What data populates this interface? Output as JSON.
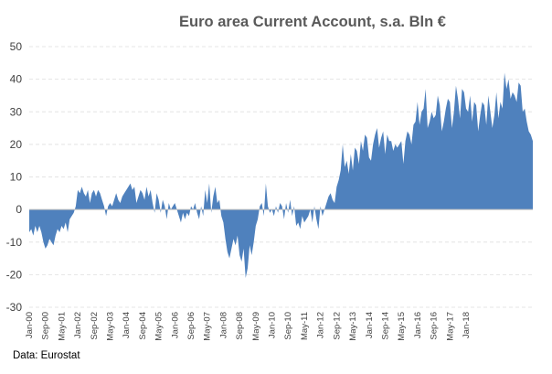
{
  "chart_data": {
    "type": "area",
    "title": "Euro area Current Account, s.a. Bln €",
    "xlabel": "",
    "ylabel": "",
    "ylim": [
      -30,
      50
    ],
    "yticks": [
      -30,
      -20,
      -10,
      0,
      10,
      20,
      30,
      40,
      50
    ],
    "grid": true,
    "legend": "none",
    "color": "#4f81bd",
    "source": "Data: Eurostat",
    "start": "Jan-00",
    "tick_labels": [
      "Jan-00",
      "Sep-00",
      "May-01",
      "Jan-02",
      "Sep-02",
      "May-03",
      "Jan-04",
      "Sep-04",
      "May-05",
      "Jan-06",
      "Sep-06",
      "May-07",
      "Jan-08",
      "Sep-08",
      "May-09",
      "Jan-10",
      "Sep-10",
      "May-11",
      "Jan-12",
      "Sep-12",
      "May-13",
      "Jan-14",
      "Sep-14",
      "May-15",
      "Jan-16",
      "Sep-16",
      "May-17",
      "Jan-18"
    ],
    "values": [
      -7,
      -6,
      -8,
      -5,
      -7,
      -5,
      -7,
      -10,
      -12,
      -11,
      -9,
      -10,
      -11,
      -8,
      -6,
      -7,
      -5,
      -6,
      -4,
      -7,
      -3,
      -2,
      -1,
      1,
      6,
      5,
      7,
      5,
      4,
      6,
      2,
      5,
      6,
      4,
      6,
      5,
      3,
      1,
      -2,
      1,
      2,
      1,
      3,
      5,
      3,
      2,
      4,
      5,
      6,
      7,
      8,
      6,
      7,
      2,
      4,
      6,
      5,
      3,
      7,
      4,
      6,
      2,
      -1,
      5,
      3,
      -1,
      3,
      1,
      -3,
      2,
      0,
      1,
      2,
      0,
      -2,
      -4,
      -1,
      -3,
      -1,
      -2,
      1,
      0,
      2,
      -1,
      -3,
      1,
      -2,
      6,
      2,
      8,
      -1,
      4,
      7,
      2,
      3,
      -2,
      -4,
      -9,
      -13,
      -15,
      -12,
      -9,
      -11,
      -8,
      -14,
      -16,
      -12,
      -21,
      -18,
      -11,
      -14,
      -10,
      -5,
      -3,
      1,
      2,
      -2,
      8,
      1,
      -1,
      0,
      -2,
      1,
      -1,
      2,
      1,
      -3,
      2,
      -1,
      3,
      -2,
      1,
      -5,
      -4,
      -6,
      -2,
      -4,
      -3,
      -2,
      0,
      -4,
      1,
      -3,
      -6,
      1,
      -2,
      0,
      2,
      4,
      5,
      3,
      2,
      7,
      9,
      12,
      20,
      13,
      15,
      11,
      17,
      12,
      19,
      18,
      14,
      21,
      18,
      23,
      22,
      16,
      15,
      20,
      23,
      25,
      19,
      22,
      24,
      17,
      23,
      21,
      21,
      18,
      20,
      19,
      20,
      21,
      14,
      21,
      24,
      23,
      20,
      26,
      27,
      33,
      26,
      30,
      31,
      37,
      25,
      27,
      30,
      28,
      29,
      35,
      32,
      24,
      27,
      31,
      34,
      33,
      25,
      30,
      38,
      34,
      28,
      37,
      36,
      31,
      30,
      35,
      27,
      33,
      32,
      24,
      29,
      33,
      32,
      26,
      35,
      30,
      25,
      29,
      36,
      28,
      33,
      31,
      42,
      37,
      40,
      34,
      36,
      35,
      33,
      39,
      38,
      30,
      31,
      27,
      24,
      23,
      21
    ]
  }
}
